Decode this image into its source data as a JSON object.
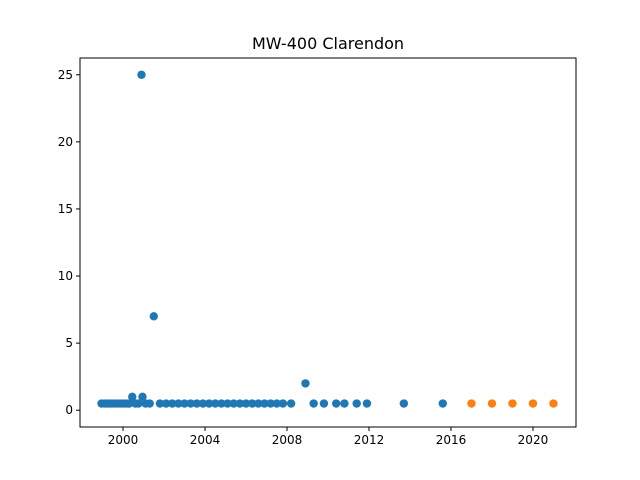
{
  "chart_data": {
    "type": "scatter",
    "title": "MW-400 Clarendon",
    "xlabel": "",
    "ylabel": "",
    "xlim": [
      1997.9,
      2022.1
    ],
    "ylim": [
      -1.25,
      26.25
    ],
    "xticks": [
      2000,
      2004,
      2008,
      2012,
      2016,
      2020
    ],
    "yticks": [
      0,
      5,
      10,
      15,
      20,
      25
    ],
    "grid": false,
    "legend": "none",
    "colors": [
      "#1f77b4",
      "#ff7f0e"
    ],
    "series": [
      {
        "color": "#1f77b4",
        "points": [
          [
            1998.95,
            0.5
          ],
          [
            1999.1,
            0.5
          ],
          [
            1999.25,
            0.5
          ],
          [
            1999.4,
            0.5
          ],
          [
            1999.55,
            0.5
          ],
          [
            1999.7,
            0.5
          ],
          [
            1999.85,
            0.5
          ],
          [
            2000.0,
            0.5
          ],
          [
            2000.15,
            0.5
          ],
          [
            2000.3,
            0.5
          ],
          [
            2000.45,
            1.0
          ],
          [
            2000.6,
            0.5
          ],
          [
            2000.75,
            0.5
          ],
          [
            2000.9,
            25.0
          ],
          [
            2000.95,
            1.0
          ],
          [
            2001.1,
            0.5
          ],
          [
            2001.3,
            0.5
          ],
          [
            2001.5,
            7.0
          ],
          [
            2001.8,
            0.5
          ],
          [
            2002.1,
            0.5
          ],
          [
            2002.4,
            0.5
          ],
          [
            2002.7,
            0.5
          ],
          [
            2003.0,
            0.5
          ],
          [
            2003.3,
            0.5
          ],
          [
            2003.6,
            0.5
          ],
          [
            2003.9,
            0.5
          ],
          [
            2004.2,
            0.5
          ],
          [
            2004.5,
            0.5
          ],
          [
            2004.8,
            0.5
          ],
          [
            2005.1,
            0.5
          ],
          [
            2005.4,
            0.5
          ],
          [
            2005.7,
            0.5
          ],
          [
            2006.0,
            0.5
          ],
          [
            2006.3,
            0.5
          ],
          [
            2006.6,
            0.5
          ],
          [
            2006.9,
            0.5
          ],
          [
            2007.2,
            0.5
          ],
          [
            2007.5,
            0.5
          ],
          [
            2007.8,
            0.5
          ],
          [
            2008.2,
            0.5
          ],
          [
            2008.9,
            2.0
          ],
          [
            2009.3,
            0.5
          ],
          [
            2009.8,
            0.5
          ],
          [
            2010.4,
            0.5
          ],
          [
            2010.8,
            0.5
          ],
          [
            2011.4,
            0.5
          ],
          [
            2011.9,
            0.5
          ],
          [
            2013.7,
            0.5
          ],
          [
            2015.6,
            0.5
          ]
        ]
      },
      {
        "color": "#ff7f0e",
        "points": [
          [
            2017.0,
            0.5
          ],
          [
            2018.0,
            0.5
          ],
          [
            2019.0,
            0.5
          ],
          [
            2020.0,
            0.5
          ],
          [
            2021.0,
            0.5
          ]
        ]
      }
    ]
  }
}
